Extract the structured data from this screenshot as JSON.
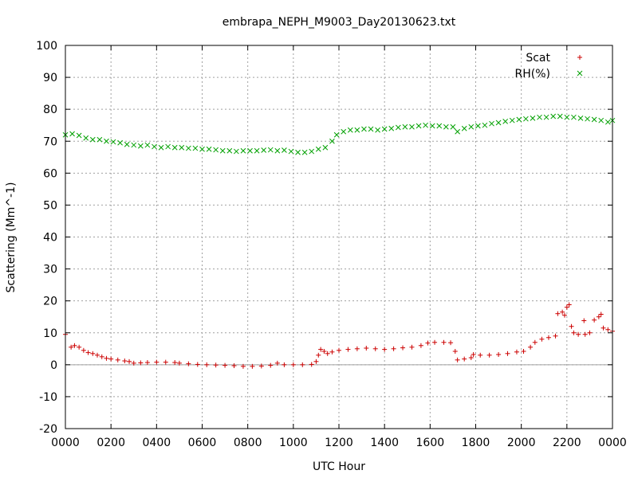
{
  "chart_data": {
    "type": "scatter",
    "title": "embrapa_NEPH_M9003_Day20130623.txt",
    "xlabel": "UTC Hour",
    "ylabel": "Scattering (Mm^-1)",
    "xlim": [
      0,
      24
    ],
    "ylim": [
      -20,
      100
    ],
    "x_tick_labels": [
      "0000",
      "0200",
      "0400",
      "0600",
      "0800",
      "1000",
      "1200",
      "1400",
      "1600",
      "1800",
      "2000",
      "2200",
      "0000"
    ],
    "y_ticks": [
      -20,
      -10,
      0,
      10,
      20,
      30,
      40,
      50,
      60,
      70,
      80,
      90,
      100
    ],
    "grid": true,
    "legend_position": "top-right",
    "series": [
      {
        "name": "Scat",
        "marker": "plus",
        "color": "#cc0000",
        "points": [
          [
            0.0,
            9.5
          ],
          [
            0.25,
            5.5
          ],
          [
            0.4,
            6.0
          ],
          [
            0.6,
            5.5
          ],
          [
            0.8,
            4.5
          ],
          [
            1.0,
            3.8
          ],
          [
            1.2,
            3.5
          ],
          [
            1.4,
            3.0
          ],
          [
            1.6,
            2.5
          ],
          [
            1.8,
            2.0
          ],
          [
            2.0,
            1.8
          ],
          [
            2.3,
            1.5
          ],
          [
            2.6,
            1.2
          ],
          [
            2.8,
            1.0
          ],
          [
            3.0,
            0.5
          ],
          [
            3.3,
            0.6
          ],
          [
            3.6,
            0.7
          ],
          [
            4.0,
            0.8
          ],
          [
            4.4,
            0.8
          ],
          [
            4.8,
            0.7
          ],
          [
            5.0,
            0.5
          ],
          [
            5.4,
            0.3
          ],
          [
            5.8,
            0.1
          ],
          [
            6.2,
            0.0
          ],
          [
            6.6,
            -0.1
          ],
          [
            7.0,
            -0.2
          ],
          [
            7.4,
            -0.3
          ],
          [
            7.8,
            -0.5
          ],
          [
            8.2,
            -0.5
          ],
          [
            8.6,
            -0.4
          ],
          [
            9.0,
            -0.2
          ],
          [
            9.3,
            0.5
          ],
          [
            9.6,
            0.0
          ],
          [
            10.0,
            0.0
          ],
          [
            10.4,
            0.0
          ],
          [
            10.8,
            0.1
          ],
          [
            11.0,
            1.0
          ],
          [
            11.1,
            3.0
          ],
          [
            11.2,
            4.8
          ],
          [
            11.35,
            4.2
          ],
          [
            11.5,
            3.5
          ],
          [
            11.7,
            4.0
          ],
          [
            12.0,
            4.5
          ],
          [
            12.4,
            4.8
          ],
          [
            12.8,
            5.0
          ],
          [
            13.2,
            5.2
          ],
          [
            13.6,
            5.0
          ],
          [
            14.0,
            4.8
          ],
          [
            14.4,
            5.0
          ],
          [
            14.8,
            5.3
          ],
          [
            15.2,
            5.5
          ],
          [
            15.6,
            6.0
          ],
          [
            15.9,
            6.8
          ],
          [
            16.2,
            7.0
          ],
          [
            16.6,
            7.0
          ],
          [
            16.9,
            6.9
          ],
          [
            17.1,
            4.2
          ],
          [
            17.2,
            1.5
          ],
          [
            17.5,
            1.8
          ],
          [
            17.8,
            2.2
          ],
          [
            17.9,
            3.2
          ],
          [
            18.2,
            3.0
          ],
          [
            18.6,
            3.0
          ],
          [
            19.0,
            3.2
          ],
          [
            19.4,
            3.5
          ],
          [
            19.8,
            4.0
          ],
          [
            20.1,
            4.2
          ],
          [
            20.4,
            5.5
          ],
          [
            20.6,
            7.0
          ],
          [
            20.9,
            8.0
          ],
          [
            21.2,
            8.5
          ],
          [
            21.5,
            9.0
          ],
          [
            21.6,
            16.0
          ],
          [
            21.8,
            16.5
          ],
          [
            21.9,
            15.5
          ],
          [
            22.0,
            18.0
          ],
          [
            22.1,
            18.8
          ],
          [
            22.2,
            12.0
          ],
          [
            22.3,
            10.0
          ],
          [
            22.5,
            9.5
          ],
          [
            22.8,
            9.5
          ],
          [
            22.75,
            13.8
          ],
          [
            23.0,
            10.0
          ],
          [
            23.2,
            14.0
          ],
          [
            23.4,
            15.0
          ],
          [
            23.5,
            15.8
          ],
          [
            23.6,
            11.5
          ],
          [
            23.8,
            11.0
          ],
          [
            24.0,
            10.5
          ]
        ]
      },
      {
        "name": "RH(%)",
        "marker": "cross",
        "color": "#00a000",
        "points": [
          [
            0.0,
            72.0
          ],
          [
            0.3,
            72.3
          ],
          [
            0.6,
            71.8
          ],
          [
            0.9,
            71.0
          ],
          [
            1.2,
            70.5
          ],
          [
            1.5,
            70.5
          ],
          [
            1.8,
            70.0
          ],
          [
            2.1,
            69.8
          ],
          [
            2.4,
            69.5
          ],
          [
            2.7,
            69.0
          ],
          [
            3.0,
            68.8
          ],
          [
            3.3,
            68.5
          ],
          [
            3.6,
            68.8
          ],
          [
            3.9,
            68.3
          ],
          [
            4.2,
            68.0
          ],
          [
            4.5,
            68.3
          ],
          [
            4.8,
            68.0
          ],
          [
            5.1,
            68.0
          ],
          [
            5.4,
            67.8
          ],
          [
            5.7,
            67.8
          ],
          [
            6.0,
            67.5
          ],
          [
            6.3,
            67.5
          ],
          [
            6.6,
            67.3
          ],
          [
            6.9,
            67.0
          ],
          [
            7.2,
            67.0
          ],
          [
            7.5,
            66.8
          ],
          [
            7.8,
            67.0
          ],
          [
            8.1,
            67.0
          ],
          [
            8.4,
            67.0
          ],
          [
            8.7,
            67.2
          ],
          [
            9.0,
            67.3
          ],
          [
            9.3,
            67.0
          ],
          [
            9.6,
            67.2
          ],
          [
            9.9,
            66.8
          ],
          [
            10.2,
            66.5
          ],
          [
            10.5,
            66.5
          ],
          [
            10.8,
            66.8
          ],
          [
            11.1,
            67.5
          ],
          [
            11.4,
            68.0
          ],
          [
            11.7,
            70.0
          ],
          [
            11.9,
            72.0
          ],
          [
            12.2,
            73.0
          ],
          [
            12.5,
            73.5
          ],
          [
            12.8,
            73.5
          ],
          [
            13.1,
            73.8
          ],
          [
            13.4,
            73.8
          ],
          [
            13.7,
            73.5
          ],
          [
            14.0,
            73.8
          ],
          [
            14.3,
            74.0
          ],
          [
            14.6,
            74.3
          ],
          [
            14.9,
            74.5
          ],
          [
            15.2,
            74.5
          ],
          [
            15.5,
            74.8
          ],
          [
            15.8,
            75.0
          ],
          [
            16.1,
            74.8
          ],
          [
            16.4,
            74.8
          ],
          [
            16.7,
            74.5
          ],
          [
            17.0,
            74.5
          ],
          [
            17.2,
            73.0
          ],
          [
            17.5,
            74.0
          ],
          [
            17.8,
            74.5
          ],
          [
            18.1,
            74.8
          ],
          [
            18.4,
            75.0
          ],
          [
            18.7,
            75.5
          ],
          [
            19.0,
            75.8
          ],
          [
            19.3,
            76.2
          ],
          [
            19.6,
            76.5
          ],
          [
            19.9,
            76.8
          ],
          [
            20.2,
            77.0
          ],
          [
            20.5,
            77.2
          ],
          [
            20.8,
            77.5
          ],
          [
            21.1,
            77.5
          ],
          [
            21.4,
            77.8
          ],
          [
            21.7,
            77.8
          ],
          [
            22.0,
            77.5
          ],
          [
            22.3,
            77.5
          ],
          [
            22.6,
            77.2
          ],
          [
            22.9,
            77.0
          ],
          [
            23.2,
            76.8
          ],
          [
            23.5,
            76.5
          ],
          [
            23.8,
            76.0
          ],
          [
            24.0,
            76.5
          ]
        ]
      }
    ]
  }
}
